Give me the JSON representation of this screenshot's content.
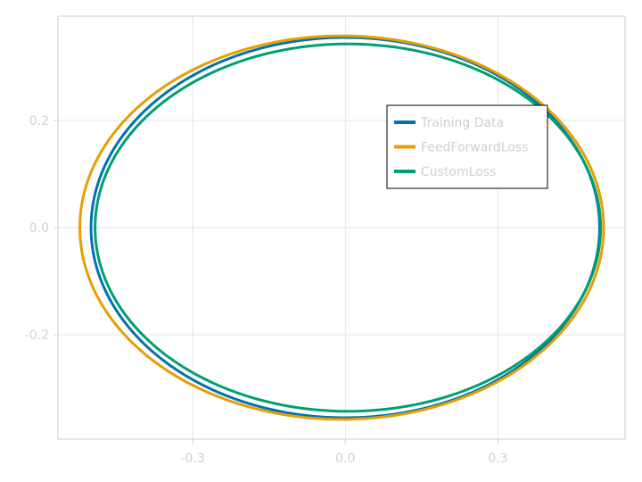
{
  "chart_data": {
    "type": "line",
    "title": "",
    "xlabel": "",
    "ylabel": "",
    "xlim": [
      -0.565,
      0.55
    ],
    "ylim": [
      -0.395,
      0.395
    ],
    "xticks": [
      -0.3,
      0.0,
      0.3
    ],
    "xtick_labels": [
      "-0.3",
      "0.0",
      "0.3"
    ],
    "yticks": [
      -0.2,
      0.0,
      0.2
    ],
    "ytick_labels": [
      "-0.2",
      "0.0",
      "0.2"
    ],
    "grid": true,
    "legend": {
      "placement": "top-right",
      "framed": true
    },
    "series": [
      {
        "name": "Training Data",
        "color": "#0072b2",
        "shape": "ellipse",
        "center": [
          0.0,
          0.0
        ],
        "x_radius": 0.5,
        "y_radius": 0.355,
        "x_range": [
          -0.5,
          0.5
        ],
        "y_range": [
          -0.355,
          0.355
        ]
      },
      {
        "name": "FeedForwardLoss",
        "color": "#e69f00",
        "shape": "ellipse",
        "center": [
          -0.007,
          0.0
        ],
        "x_radius": 0.515,
        "y_radius": 0.358,
        "x_range": [
          -0.522,
          0.508
        ],
        "y_range": [
          -0.358,
          0.358
        ]
      },
      {
        "name": "CustomLoss",
        "color": "#009e73",
        "shape": "ellipse",
        "center": [
          0.005,
          0.0
        ],
        "x_radius": 0.497,
        "y_radius": 0.343,
        "x_range": [
          -0.492,
          0.502
        ],
        "y_range": [
          -0.343,
          0.343
        ]
      }
    ]
  }
}
